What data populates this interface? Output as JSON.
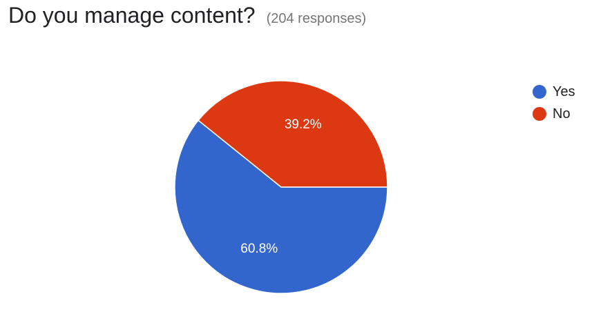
{
  "header": {
    "title": "Do you manage content?",
    "responses": "(204 responses)"
  },
  "chart_data": {
    "type": "pie",
    "title": "Do you manage content?",
    "slices": [
      {
        "name": "Yes",
        "value": 60.8,
        "label": "60.8%",
        "color": "#3366cc"
      },
      {
        "name": "No",
        "value": 39.2,
        "label": "39.2%",
        "color": "#dc3912"
      }
    ],
    "legend": "right"
  }
}
